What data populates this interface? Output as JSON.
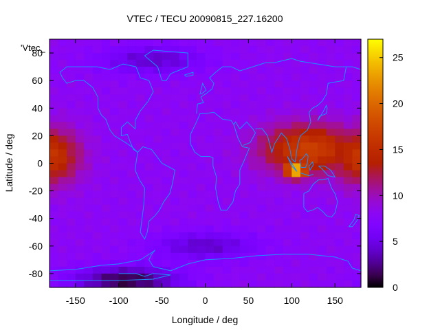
{
  "chart_data": {
    "type": "heatmap",
    "title": "VTEC / TECU 20090815_227.16200",
    "xlabel": "Longitude / deg",
    "ylabel": "Latitude / deg",
    "key_label": "'Vtec_",
    "xlim": [
      -180,
      180
    ],
    "ylim": [
      -90,
      90
    ],
    "zlim": [
      0,
      27
    ],
    "x_ticks": [
      -150,
      -100,
      -50,
      0,
      50,
      100,
      150
    ],
    "y_ticks": [
      -80,
      -60,
      -40,
      -20,
      0,
      20,
      40,
      60,
      80
    ],
    "z_ticks": [
      0,
      5,
      10,
      15,
      20,
      25
    ],
    "palette": "gnuplot pm3d (black-purple-red-yellow)",
    "grid_resolution": {
      "dlon": 10,
      "dlat": 5
    },
    "enhancements": [
      {
        "region": "Pacific equatorial anomaly (west edge)",
        "lon": -180,
        "lat": 5,
        "peak_tecu": 16,
        "lon_half_width": 35,
        "lat_half_width": 20
      },
      {
        "region": "Asia-Pacific equatorial anomaly",
        "lon": 120,
        "lat": 10,
        "peak_tecu": 17,
        "lon_half_width": 55,
        "lat_half_width": 18
      },
      {
        "region": "Indonesia peak",
        "lon": 105,
        "lat": -5,
        "peak_tecu": 26,
        "lon_half_width": 14,
        "lat_half_width": 6
      },
      {
        "region": "Western Pacific",
        "lon": 170,
        "lat": 5,
        "peak_tecu": 14,
        "lon_half_width": 30,
        "lat_half_width": 18
      }
    ],
    "background_tecu": 8,
    "depletions": [
      {
        "region": "Antarctic low",
        "lon": -90,
        "lat": -85,
        "min_tecu": 1
      },
      {
        "region": "South Atlantic low",
        "lon": 0,
        "lat": -60,
        "min_tecu": 4
      },
      {
        "region": "Arctic low",
        "lon": -60,
        "lat": 75,
        "min_tecu": 4
      }
    ],
    "overlay": "coastlines (light blue)"
  },
  "colors": {
    "coastline": "#1e90ff",
    "frame": "#000000"
  }
}
